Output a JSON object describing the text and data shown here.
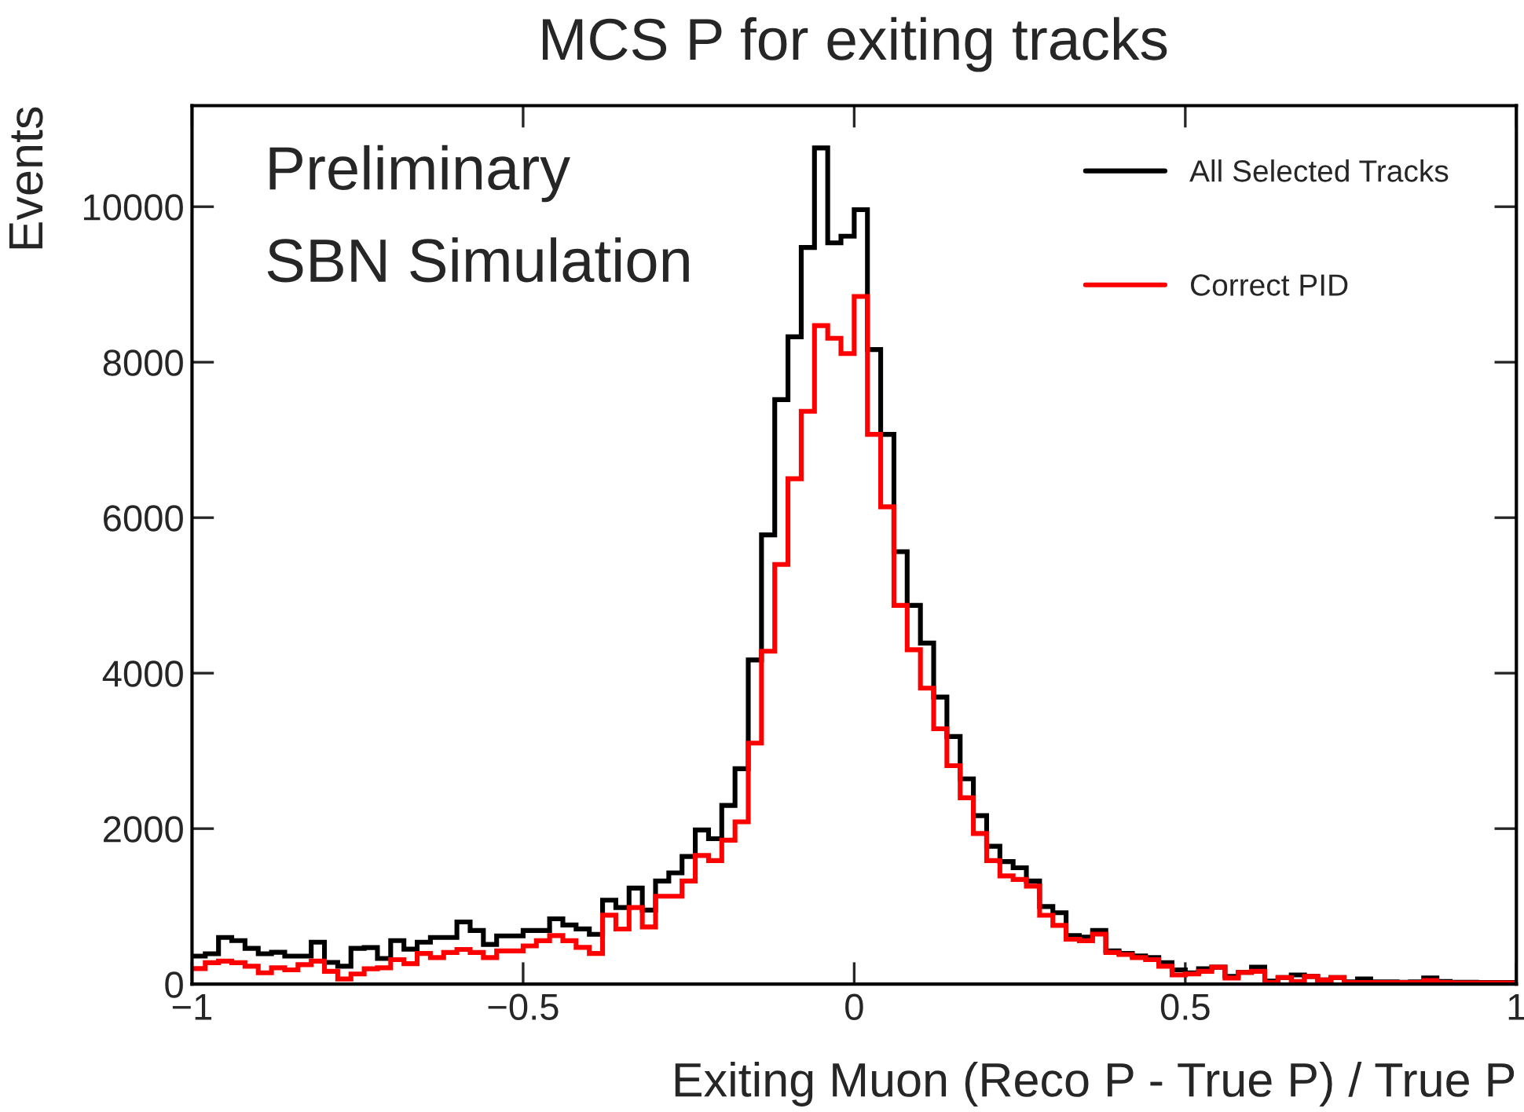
{
  "chart_data": {
    "type": "histogram",
    "title": "MCS P for exiting tracks",
    "xlabel": "Exiting Muon (Reco P - True P) / True P",
    "ylabel": "Events",
    "annotations": [
      "Preliminary",
      "SBN Simulation"
    ],
    "bins": [
      -1.0,
      -0.98,
      -0.96,
      -0.94,
      -0.92,
      -0.9,
      -0.88,
      -0.86,
      -0.84,
      -0.82,
      -0.8,
      -0.78,
      -0.76,
      -0.74,
      -0.72,
      -0.7,
      -0.68,
      -0.66,
      -0.64,
      -0.62,
      -0.6,
      -0.58,
      -0.56,
      -0.54,
      -0.52,
      -0.5,
      -0.48,
      -0.46,
      -0.44,
      -0.42,
      -0.4,
      -0.38,
      -0.36,
      -0.34,
      -0.32,
      -0.3,
      -0.28,
      -0.26,
      -0.24,
      -0.22,
      -0.2,
      -0.18,
      -0.16,
      -0.14,
      -0.12,
      -0.1,
      -0.08,
      -0.06,
      -0.04,
      -0.02,
      0.0,
      0.02,
      0.04,
      0.06,
      0.08,
      0.1,
      0.12,
      0.14,
      0.16,
      0.18,
      0.2,
      0.22,
      0.24,
      0.26,
      0.28,
      0.3,
      0.32,
      0.34,
      0.36,
      0.38,
      0.4,
      0.42,
      0.44,
      0.46,
      0.48,
      0.5,
      0.52,
      0.54,
      0.56,
      0.58,
      0.6,
      0.62,
      0.64,
      0.66,
      0.68,
      0.7,
      0.72,
      0.74,
      0.76,
      0.78,
      0.8,
      0.82,
      0.84,
      0.86,
      0.88,
      0.9,
      0.92,
      0.94,
      0.96,
      0.98,
      1.0
    ],
    "series": [
      {
        "name": "All Selected Tracks",
        "color": "#000000",
        "values": [
          360,
          390,
          600,
          560,
          460,
          390,
          410,
          360,
          360,
          540,
          280,
          230,
          460,
          470,
          330,
          560,
          450,
          540,
          600,
          600,
          800,
          690,
          510,
          620,
          620,
          690,
          690,
          840,
          760,
          710,
          640,
          1080,
          985,
          1235,
          952,
          1326,
          1431,
          1642,
          1983,
          1871,
          2298,
          2771,
          4170,
          5778,
          7518,
          8326,
          9476,
          10756,
          9535,
          9621,
          9962,
          8162,
          7072,
          5562,
          4872,
          4387,
          3693,
          3185,
          2640,
          2167,
          1773,
          1576,
          1497,
          1326,
          998,
          919,
          624,
          604,
          690,
          427,
          394,
          361,
          341,
          276,
          184,
          144,
          197,
          217,
          100,
          151,
          217,
          40,
          85,
          118,
          99,
          53,
          85,
          30,
          66,
          30,
          30,
          25,
          30,
          79,
          33,
          25,
          25,
          20,
          20,
          20
        ]
      },
      {
        "name": "Correct PID",
        "color": "#ff0000",
        "values": [
          200,
          276,
          296,
          276,
          230,
          145,
          210,
          184,
          250,
          296,
          164,
          66,
          131,
          197,
          210,
          315,
          263,
          394,
          341,
          407,
          446,
          407,
          341,
          427,
          427,
          492,
          558,
          624,
          558,
          473,
          394,
          887,
          709,
          985,
          735,
          1130,
          1130,
          1326,
          1655,
          1589,
          1852,
          2088,
          3100,
          4282,
          5398,
          6501,
          7368,
          8471,
          8307,
          8110,
          8845,
          7072,
          6140,
          4872,
          4301,
          3808,
          3284,
          2810,
          2397,
          1937,
          1589,
          1392,
          1346,
          1261,
          886,
          755,
          577,
          558,
          643,
          407,
          381,
          341,
          315,
          230,
          118,
          131,
          164,
          217,
          79,
          151,
          164,
          20,
          85,
          33,
          99,
          53,
          85,
          20,
          20,
          20,
          20,
          20,
          20,
          46,
          20,
          15,
          15,
          15,
          15,
          15
        ]
      }
    ],
    "xlim": [
      -1,
      1
    ],
    "ylim": [
      0,
      11300
    ],
    "xticks": [
      {
        "value": -1,
        "label": "−1"
      },
      {
        "value": -0.5,
        "label": "−0.5"
      },
      0,
      0.5,
      1
    ],
    "yticks": [
      0,
      2000,
      4000,
      6000,
      8000,
      10000
    ],
    "grid": false,
    "legend": "top right"
  }
}
